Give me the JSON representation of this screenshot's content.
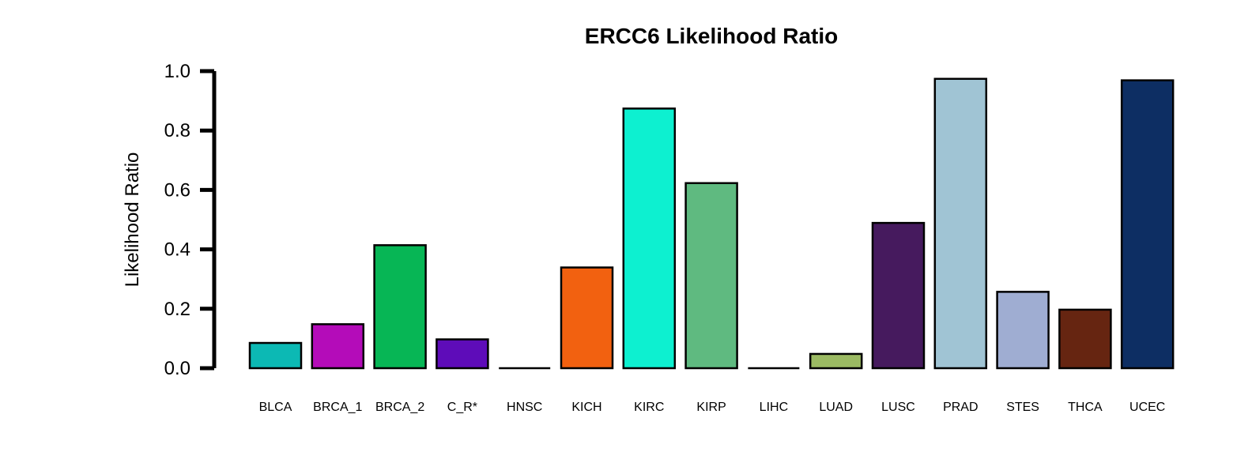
{
  "chart_data": {
    "type": "bar",
    "title": "ERCC6 Likelihood Ratio",
    "xlabel": "",
    "ylabel": "Likelihood Ratio",
    "ylim": [
      0,
      1.0
    ],
    "yticks": [
      "0.0",
      "0.2",
      "0.4",
      "0.6",
      "0.8",
      "1.0"
    ],
    "categories": [
      "BLCA",
      "BRCA_1",
      "BRCA_2",
      "C_R*",
      "HNSC",
      "KICH",
      "KIRC",
      "KIRP",
      "LIHC",
      "LUAD",
      "LUSC",
      "PRAD",
      "STES",
      "THCA",
      "UCEC"
    ],
    "values": [
      0.085,
      0.148,
      0.414,
      0.097,
      0.0,
      0.339,
      0.874,
      0.623,
      0.0,
      0.048,
      0.489,
      0.974,
      0.257,
      0.197,
      0.969
    ],
    "colors": [
      "#0CB9B4",
      "#B40CB9",
      "#07B655",
      "#5E0CB9",
      "#000000",
      "#F26110",
      "#0DF0D0",
      "#5FBA80",
      "#000000",
      "#9BBA63",
      "#461A5E",
      "#A0C4D4",
      "#9FADD2",
      "#662511",
      "#0D2E63"
    ],
    "grid": false,
    "legend": "none"
  }
}
